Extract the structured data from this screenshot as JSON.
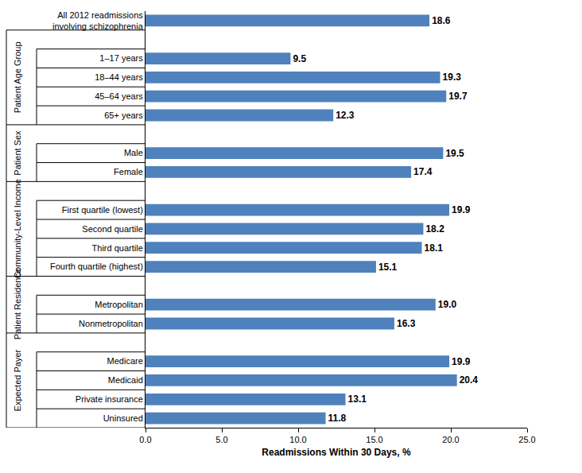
{
  "chart_data": {
    "type": "bar",
    "orientation": "horizontal",
    "categories": [
      "All 2012 readmissions involving schizophrenia",
      null,
      "1–17 years",
      "18–44 years",
      "45–64 years",
      "65+ years",
      null,
      "Male",
      "Female",
      null,
      "First quartile (lowest)",
      "Second quartile",
      "Third quartile",
      "Fourth quartile (highest)",
      null,
      "Metropolitan",
      "Nonmetropolitan",
      null,
      "Medicare",
      "Medicaid",
      "Private insurance",
      "Uninsured"
    ],
    "values": [
      18.6,
      null,
      9.5,
      19.3,
      19.7,
      12.3,
      null,
      19.5,
      17.4,
      null,
      19.9,
      18.2,
      18.1,
      15.1,
      null,
      19.0,
      16.3,
      null,
      19.9,
      20.4,
      13.1,
      11.8
    ],
    "value_labels": [
      "18.6",
      null,
      "9.5",
      "19.3",
      "19.7",
      "12.3",
      null,
      "19.5",
      "17.4",
      null,
      "19.9",
      "18.2",
      "18.1",
      "15.1",
      null,
      "19.0",
      "16.3",
      null,
      "19.9",
      "20.4",
      "13.1",
      "11.8"
    ],
    "groups": [
      {
        "name": "Patient Age Group",
        "categories": [
          "1–17 years",
          "18–44 years",
          "45–64 years",
          "65+ years"
        ]
      },
      {
        "name": "Patient Sex",
        "categories": [
          "Male",
          "Female"
        ]
      },
      {
        "name": "Community-Level Income",
        "categories": [
          "First quartile (lowest)",
          "Second quartile",
          "Third quartile",
          "Fourth quartile (highest)"
        ]
      },
      {
        "name": "Patient Residence",
        "categories": [
          "Metropolitan",
          "Nonmetropolitan"
        ]
      },
      {
        "name": "Expected Payer",
        "categories": [
          "Medicare",
          "Medicaid",
          "Private insurance",
          "Uninsured"
        ]
      }
    ],
    "color": "#4f81bd",
    "xlabel": "Readmissions Within 30 Days, %",
    "xlim": [
      0,
      25
    ],
    "xticks": [
      {
        "value": 0,
        "label": "0.0"
      },
      {
        "value": 5,
        "label": "5.0"
      },
      {
        "value": 10,
        "label": "10.0"
      },
      {
        "value": 15,
        "label": "15.0"
      },
      {
        "value": 20,
        "label": "20.0"
      },
      {
        "value": 25,
        "label": "25.0"
      }
    ],
    "grid": false,
    "data_labels": true
  }
}
